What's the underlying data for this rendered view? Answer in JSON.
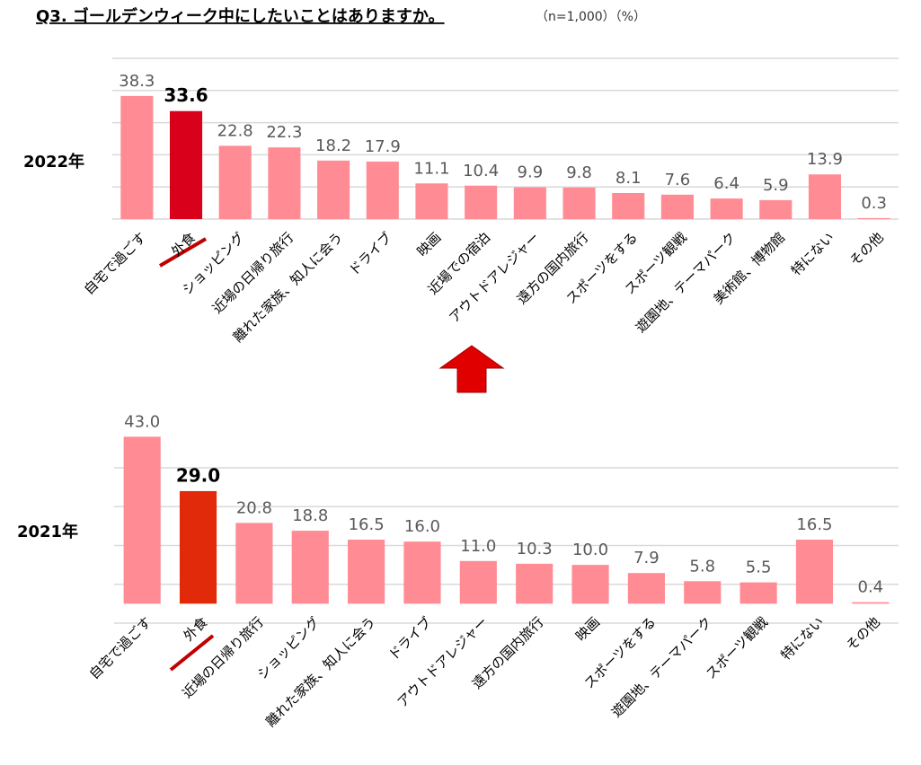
{
  "header": {
    "title": "Q3. ゴールデンウィーク中にしたいことはありますか。",
    "subtitle": "（n=1,000）（%）"
  },
  "chart_data": [
    {
      "type": "bar",
      "label": "2022年",
      "categories": [
        "自宅で過ごす",
        "外食",
        "ショッピング",
        "近場の日帰り旅行",
        "離れた家族、知人に会う",
        "ドライブ",
        "映画",
        "近場での宿泊",
        "アウトドアレジャー",
        "遠方の国内旅行",
        "スポーツをする",
        "スポーツ観戦",
        "遊園地、テーマパーク",
        "美術館、博物館",
        "特にない",
        "その他"
      ],
      "values": [
        38.3,
        33.6,
        22.8,
        22.3,
        18.2,
        17.9,
        11.1,
        10.4,
        9.9,
        9.8,
        8.1,
        7.6,
        6.4,
        5.9,
        13.9,
        0.3
      ],
      "colors": [
        "#ff8c94",
        "#d9001b",
        "#ff8c94",
        "#ff8c94",
        "#ff8c94",
        "#ff8c94",
        "#ff8c94",
        "#ff8c94",
        "#ff8c94",
        "#ff8c94",
        "#ff8c94",
        "#ff8c94",
        "#ff8c94",
        "#ff8c94",
        "#ff8c94",
        "#ff8c94"
      ],
      "ylim": [
        0,
        50
      ],
      "yticks": [
        0,
        10,
        20,
        30,
        40,
        50
      ],
      "grid": true
    },
    {
      "type": "bar",
      "label": "2021年",
      "categories": [
        "自宅で過ごす",
        "外食",
        "近場の日帰り旅行",
        "ショッピング",
        "離れた家族、知人に会う",
        "ドライブ",
        "アウトドアレジャー",
        "遠方の国内旅行",
        "映画",
        "スポーツをする",
        "遊園地、テーマパーク",
        "スポーツ観戦",
        "特にない",
        "その他"
      ],
      "values": [
        43.0,
        29.0,
        20.8,
        18.8,
        16.5,
        16.0,
        11.0,
        10.3,
        10.0,
        7.9,
        5.8,
        5.5,
        16.5,
        0.4
      ],
      "value_labels": [
        "43.0",
        "29.0",
        "20.8",
        "18.8",
        "16.5",
        "16.0",
        "11.0",
        "10.3",
        "10.0",
        "7.9",
        "5.8",
        "5.5",
        "16.5",
        "0.4"
      ],
      "colors": [
        "#ff8c94",
        "#e02a0a",
        "#ff8c94",
        "#ff8c94",
        "#ff8c94",
        "#ff8c94",
        "#ff8c94",
        "#ff8c94",
        "#ff8c94",
        "#ff8c94",
        "#ff8c94",
        "#ff8c94",
        "#ff8c94",
        "#ff8c94"
      ],
      "ylim": [
        -5,
        35
      ],
      "yticks": [
        -5,
        5,
        15,
        25,
        35
      ],
      "grid": true
    }
  ]
}
